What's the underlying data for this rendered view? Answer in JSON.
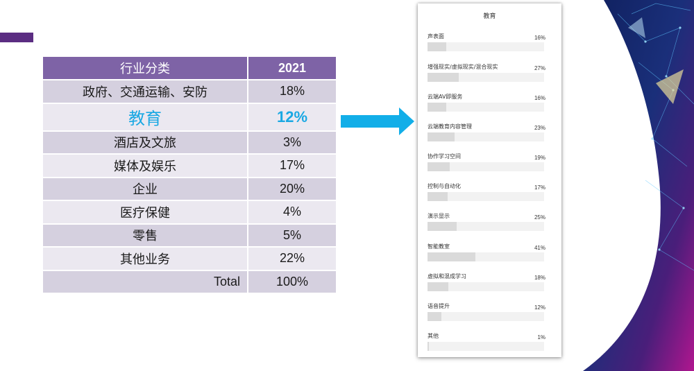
{
  "table": {
    "header_category": "行业分类",
    "header_year": "2021",
    "rows": [
      {
        "name": "政府、交通运输、安防",
        "pct": "18%"
      },
      {
        "name": "教育",
        "pct": "12%",
        "highlight": true
      },
      {
        "name": "酒店及文旅",
        "pct": "3%"
      },
      {
        "name": "媒体及娱乐",
        "pct": "17%"
      },
      {
        "name": "企业",
        "pct": "20%"
      },
      {
        "name": "医疗保健",
        "pct": "4%"
      },
      {
        "name": "零售",
        "pct": "5%"
      },
      {
        "name": "其他业务",
        "pct": "22%"
      },
      {
        "name": "Total",
        "pct": "100%",
        "total": true
      }
    ]
  },
  "colors": {
    "header_bg": "#7e63a6",
    "highlight_text": "#19a8e3",
    "arrow": "#12aee8",
    "accent_bar": "#5b2d82"
  },
  "panel": {
    "title": "教育",
    "items": [
      {
        "label": "声表面",
        "pct_text": "16%",
        "value": 16
      },
      {
        "label": "增强现实/虚拟现实/混合现实",
        "pct_text": "27%",
        "value": 27
      },
      {
        "label": "云端AV即服务",
        "pct_text": "16%",
        "value": 16
      },
      {
        "label": "云端教育内容管理",
        "pct_text": "23%",
        "value": 23
      },
      {
        "label": "协作学习空间",
        "pct_text": "19%",
        "value": 19
      },
      {
        "label": "控制与自动化",
        "pct_text": "17%",
        "value": 17
      },
      {
        "label": "演示显示",
        "pct_text": "25%",
        "value": 25
      },
      {
        "label": "智能教室",
        "pct_text": "41%",
        "value": 41
      },
      {
        "label": "虚拟和混成学习",
        "pct_text": "18%",
        "value": 18
      },
      {
        "label": "语音提升",
        "pct_text": "12%",
        "value": 12
      },
      {
        "label": "其他",
        "pct_text": "1%",
        "value": 1
      }
    ]
  }
}
